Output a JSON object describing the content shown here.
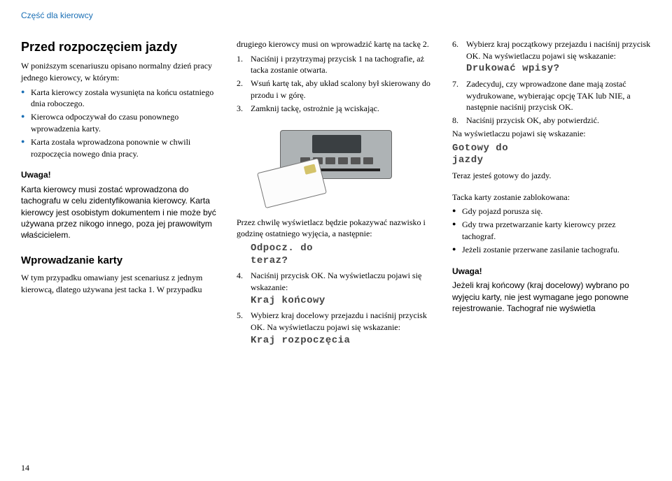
{
  "header": "Część dla kierowcy",
  "col1": {
    "title": "Przed rozpoczęciem jazdy",
    "intro": "W poniższym scenariuszu opisano normalny dzień pracy jednego kierowcy, w którym:",
    "bullets": [
      "Karta kierowcy została wysunięta na końcu ostatniego dnia roboczego.",
      "Kierowca odpoczywał do czasu ponownego wprowadzenia karty.",
      "Karta została wprowadzona ponownie w chwili rozpoczęcia nowego dnia pracy."
    ],
    "warn_title": "Uwaga!",
    "warn_body": "Karta kierowcy musi zostać wprowadzona do tachografu w celu zidentyfikowania kierowcy. Karta kierowcy jest osobistym dokumentem i nie może być używana przez nikogo innego, poza jej prawowitym właścicielem.",
    "sub": "Wprowadzanie karty",
    "sub_body": "W tym przypadku omawiany jest scenariusz z jednym kierowcą, dlatego używana jest tacka 1. W przypadku"
  },
  "col2": {
    "cont": "drugiego kierowcy musi on wprowadzić kartę na tackę 2.",
    "steps_a": [
      "Naciśnij i przytrzymaj przycisk 1 na tachografie, aż tacka zostanie otwarta.",
      "Wsuń kartę tak, aby układ scalony był skierowany do przodu i w górę.",
      "Zamknij tackę, ostrożnie ją wciskając."
    ],
    "mid": "Przez chwilę wyświetlacz będzie pokazywać nazwisko i godzinę ostatniego wyjęcia, a następnie:",
    "dm1": "Odpocz. do\nteraz?",
    "step4": "Naciśnij przycisk OK. Na wyświetlaczu pojawi się wskazanie:",
    "dm2": "Kraj końcowy",
    "step5": "Wybierz kraj docelowy przejazdu i naciśnij przycisk OK. Na wyświetlaczu pojawi się wskazanie:",
    "dm3": "Kraj rozpoczęcia"
  },
  "col3": {
    "step6": "Wybierz kraj początkowy przejazdu i naciśnij przycisk OK. Na wyświetlaczu pojawi się wskazanie:",
    "dm4": "Drukować wpisy?",
    "step7": "Zadecyduj, czy wprowadzone dane mają zostać wydrukowane, wybierając opcję TAK lub NIE, a następnie naciśnij przycisk OK.",
    "step8": "Naciśnij przycisk OK, aby potwierdzić.",
    "after": "Na wyświetlaczu pojawi się wskazanie:",
    "dm5": "Gotowy do\njazdy",
    "ready": "Teraz jesteś gotowy do jazdy.",
    "lock": "Tacka karty zostanie zablokowana:",
    "lock_bullets": [
      "Gdy pojazd porusza się.",
      "Gdy trwa przetwarzanie karty kierowcy przez tachograf.",
      "Jeżeli zostanie przerwane zasilanie tachografu."
    ],
    "warn_title": "Uwaga!",
    "warn_body": "Jeżeli kraj końcowy (kraj docelowy) wybrano po wyjęciu karty, nie jest wymagane jego ponowne rejestrowanie. Tachograf nie wyświetla"
  },
  "pagenum": "14"
}
